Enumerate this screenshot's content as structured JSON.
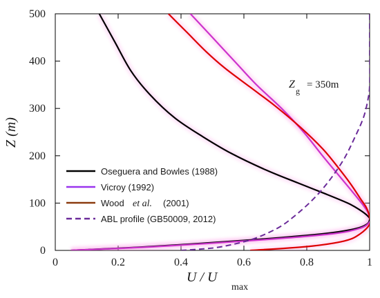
{
  "chart_data": {
    "type": "line",
    "xlabel": "U / U",
    "xlabel_sub": "max",
    "ylabel": "Z  (m)",
    "xlim": [
      0,
      1
    ],
    "ylim": [
      0,
      500
    ],
    "xticks": [
      0,
      0.2,
      0.4,
      0.6,
      0.8,
      1
    ],
    "xtick_labels": [
      "0",
      "0.2",
      "0.4",
      "0.6",
      "0.8",
      "1"
    ],
    "yticks": [
      0,
      100,
      200,
      300,
      400,
      500
    ],
    "ytick_labels": [
      "0",
      "100",
      "200",
      "300",
      "400",
      "500"
    ],
    "grid": false,
    "legend_position": "bottom-left",
    "annotation": {
      "main": "Z",
      "sub": "g",
      "value": "= 350m"
    },
    "series": [
      {
        "name": "Oseguera and Bowles (1988)",
        "color": "#000000",
        "dash": false,
        "points": [
          [
            0.05,
            0
          ],
          [
            0.3,
            8
          ],
          [
            0.62,
            22
          ],
          [
            0.85,
            35
          ],
          [
            0.95,
            45
          ],
          [
            0.99,
            55
          ],
          [
            1.0,
            65
          ],
          [
            0.995,
            72
          ],
          [
            0.97,
            85
          ],
          [
            0.93,
            100
          ],
          [
            0.85,
            122
          ],
          [
            0.77,
            143
          ],
          [
            0.67,
            170
          ],
          [
            0.56,
            205
          ],
          [
            0.47,
            240
          ],
          [
            0.38,
            280
          ],
          [
            0.3,
            330
          ],
          [
            0.24,
            380
          ],
          [
            0.19,
            440
          ],
          [
            0.14,
            500
          ]
        ]
      },
      {
        "name": "Vicroy (1992)",
        "color": "#cc33cc",
        "dash": false,
        "points": [
          [
            0.05,
            0
          ],
          [
            0.32,
            8
          ],
          [
            0.65,
            22
          ],
          [
            0.88,
            35
          ],
          [
            0.97,
            47
          ],
          [
            1.0,
            60
          ],
          [
            1.0,
            70
          ],
          [
            0.995,
            80
          ],
          [
            0.98,
            95
          ],
          [
            0.95,
            120
          ],
          [
            0.9,
            160
          ],
          [
            0.85,
            200
          ],
          [
            0.79,
            250
          ],
          [
            0.72,
            300
          ],
          [
            0.64,
            350
          ],
          [
            0.57,
            400
          ],
          [
            0.5,
            450
          ],
          [
            0.43,
            500
          ]
        ]
      },
      {
        "name": "Wood",
        "name_italic": "et al.",
        "name_tail": "(2001)",
        "color": "#dd0000",
        "dash": false,
        "points": [
          [
            0.62,
            0
          ],
          [
            0.8,
            8
          ],
          [
            0.92,
            20
          ],
          [
            0.97,
            35
          ],
          [
            1.0,
            55
          ],
          [
            1.0,
            70
          ],
          [
            0.99,
            90
          ],
          [
            0.97,
            110
          ],
          [
            0.94,
            140
          ],
          [
            0.9,
            175
          ],
          [
            0.85,
            215
          ],
          [
            0.78,
            260
          ],
          [
            0.7,
            305
          ],
          [
            0.62,
            345
          ],
          [
            0.54,
            385
          ],
          [
            0.48,
            420
          ],
          [
            0.42,
            460
          ],
          [
            0.36,
            500
          ]
        ]
      },
      {
        "name": "ABL profile (GB50009, 2012)",
        "color": "#6a2a99",
        "dash": true,
        "points": [
          [
            0.4,
            0
          ],
          [
            0.5,
            5
          ],
          [
            0.56,
            12
          ],
          [
            0.62,
            22
          ],
          [
            0.67,
            35
          ],
          [
            0.72,
            52
          ],
          [
            0.76,
            72
          ],
          [
            0.8,
            95
          ],
          [
            0.84,
            122
          ],
          [
            0.88,
            155
          ],
          [
            0.92,
            195
          ],
          [
            0.95,
            235
          ],
          [
            0.98,
            280
          ],
          [
            0.995,
            320
          ],
          [
            1.0,
            350
          ],
          [
            1.0,
            425
          ],
          [
            1.0,
            500
          ]
        ]
      }
    ],
    "legend_entries": [
      {
        "text": "Oseguera and Bowles (1988)",
        "color": "#000000",
        "dash": false
      },
      {
        "text": "Vicroy (1992)",
        "color": "#9933ee",
        "dash": false
      },
      {
        "text": "Wood",
        "italic": "et al.",
        "tail": "(2001)",
        "color": "#8b3a0f",
        "dash": false
      },
      {
        "text": "ABL profile (GB50009, 2012)",
        "color": "#6a2a99",
        "dash": true
      }
    ]
  }
}
